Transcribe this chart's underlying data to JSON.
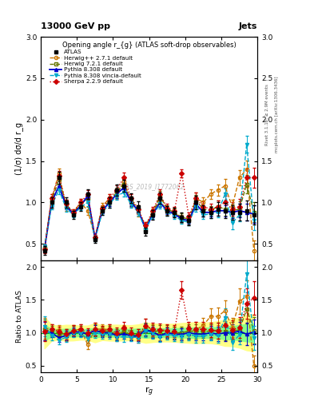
{
  "title_top": "13000 GeV pp",
  "title_right": "Jets",
  "plot_title": "Opening angle r_{g} (ATLAS soft-drop observables)",
  "xlabel": "r$_g$",
  "ylabel_main": "(1/σ) dσ/d r_g",
  "ylabel_ratio": "Ratio to ATLAS",
  "watermark": "ATLAS_2019_I1772062",
  "rivet_text": "Rivet 3.1.10; ≥ 2.9M events",
  "mcplots_text": "mcplots.cern.ch [arXiv:1306.3436]",
  "x_values": [
    0.5,
    1.5,
    2.5,
    3.5,
    4.5,
    5.5,
    6.5,
    7.5,
    8.5,
    9.5,
    10.5,
    11.5,
    12.5,
    13.5,
    14.5,
    15.5,
    16.5,
    17.5,
    18.5,
    19.5,
    20.5,
    21.5,
    22.5,
    23.5,
    24.5,
    25.5,
    26.5,
    27.5,
    28.5,
    29.5
  ],
  "atlas_y": [
    0.42,
    1.0,
    1.3,
    1.0,
    0.85,
    0.95,
    1.1,
    0.55,
    0.9,
    1.0,
    1.15,
    1.2,
    1.05,
    0.95,
    0.65,
    0.85,
    1.05,
    0.9,
    0.88,
    0.82,
    0.78,
    1.0,
    0.9,
    0.88,
    0.92,
    0.9,
    0.88,
    0.88,
    0.9,
    0.85
  ],
  "atlas_yerr": [
    0.05,
    0.06,
    0.07,
    0.06,
    0.05,
    0.05,
    0.06,
    0.04,
    0.05,
    0.06,
    0.07,
    0.07,
    0.06,
    0.06,
    0.05,
    0.06,
    0.07,
    0.06,
    0.06,
    0.06,
    0.06,
    0.08,
    0.07,
    0.07,
    0.08,
    0.09,
    0.09,
    0.1,
    0.12,
    0.12
  ],
  "herwig271_y": [
    0.45,
    1.05,
    1.35,
    0.95,
    0.88,
    1.0,
    0.9,
    0.58,
    0.95,
    1.05,
    1.1,
    1.25,
    1.0,
    0.88,
    0.72,
    0.88,
    1.02,
    0.9,
    0.88,
    0.8,
    0.78,
    1.05,
    1.0,
    1.1,
    1.15,
    1.2,
    0.95,
    1.3,
    1.4,
    0.42
  ],
  "herwig271_yerr": [
    0.04,
    0.05,
    0.06,
    0.05,
    0.04,
    0.04,
    0.05,
    0.03,
    0.04,
    0.05,
    0.06,
    0.06,
    0.05,
    0.05,
    0.04,
    0.05,
    0.06,
    0.05,
    0.05,
    0.05,
    0.05,
    0.07,
    0.06,
    0.06,
    0.07,
    0.08,
    0.08,
    0.09,
    0.11,
    0.12
  ],
  "herwig721_y": [
    0.44,
    1.02,
    1.28,
    0.98,
    0.87,
    0.98,
    1.05,
    0.57,
    0.92,
    1.02,
    1.12,
    1.22,
    1.02,
    0.92,
    0.68,
    0.87,
    1.08,
    0.92,
    0.88,
    0.82,
    0.8,
    1.02,
    0.92,
    0.9,
    0.95,
    0.92,
    0.9,
    0.92,
    1.22,
    0.88
  ],
  "herwig721_yerr": [
    0.04,
    0.05,
    0.06,
    0.05,
    0.04,
    0.04,
    0.05,
    0.03,
    0.04,
    0.05,
    0.06,
    0.06,
    0.05,
    0.05,
    0.04,
    0.05,
    0.06,
    0.05,
    0.05,
    0.05,
    0.05,
    0.07,
    0.06,
    0.06,
    0.07,
    0.08,
    0.08,
    0.09,
    0.11,
    0.12
  ],
  "pythia_y": [
    0.43,
    1.0,
    1.2,
    0.96,
    0.86,
    0.96,
    1.08,
    0.57,
    0.9,
    1.0,
    1.1,
    1.18,
    1.0,
    0.9,
    0.68,
    0.86,
    1.0,
    0.9,
    0.86,
    0.8,
    0.78,
    0.98,
    0.88,
    0.88,
    0.9,
    0.9,
    0.88,
    0.9,
    0.88,
    0.86
  ],
  "pythia_yerr": [
    0.03,
    0.04,
    0.05,
    0.04,
    0.03,
    0.03,
    0.04,
    0.02,
    0.03,
    0.04,
    0.05,
    0.05,
    0.04,
    0.04,
    0.03,
    0.04,
    0.05,
    0.04,
    0.04,
    0.04,
    0.04,
    0.06,
    0.05,
    0.05,
    0.06,
    0.07,
    0.07,
    0.08,
    0.1,
    0.11
  ],
  "vincia_y": [
    0.46,
    0.96,
    1.15,
    0.93,
    0.85,
    0.94,
    1.0,
    0.55,
    0.88,
    0.98,
    1.08,
    1.12,
    0.98,
    0.88,
    0.67,
    0.84,
    0.98,
    0.88,
    0.84,
    0.78,
    0.76,
    0.95,
    0.85,
    0.86,
    0.88,
    1.1,
    0.75,
    0.85,
    1.7,
    0.78
  ],
  "vincia_yerr": [
    0.03,
    0.04,
    0.05,
    0.04,
    0.03,
    0.03,
    0.04,
    0.02,
    0.03,
    0.04,
    0.05,
    0.05,
    0.04,
    0.04,
    0.03,
    0.04,
    0.05,
    0.04,
    0.04,
    0.04,
    0.04,
    0.06,
    0.05,
    0.05,
    0.06,
    0.07,
    0.07,
    0.08,
    0.1,
    0.11
  ],
  "sherpa_y": [
    0.43,
    1.05,
    1.32,
    0.98,
    0.88,
    1.0,
    1.1,
    0.58,
    0.93,
    1.05,
    1.15,
    1.3,
    1.05,
    0.92,
    0.72,
    0.9,
    1.1,
    0.93,
    0.9,
    1.35,
    0.83,
    1.05,
    0.95,
    0.92,
    0.95,
    1.0,
    0.92,
    0.95,
    1.3,
    1.3
  ],
  "sherpa_yerr": [
    0.04,
    0.05,
    0.06,
    0.05,
    0.04,
    0.04,
    0.05,
    0.03,
    0.04,
    0.05,
    0.06,
    0.06,
    0.05,
    0.05,
    0.04,
    0.05,
    0.06,
    0.05,
    0.05,
    0.05,
    0.05,
    0.07,
    0.06,
    0.06,
    0.07,
    0.08,
    0.08,
    0.09,
    0.11,
    0.12
  ],
  "color_atlas": "#000000",
  "color_herwig271": "#cc7700",
  "color_herwig721": "#667700",
  "color_pythia": "#0000cc",
  "color_vincia": "#00aacc",
  "color_sherpa": "#cc0000",
  "ylim_main": [
    0.3,
    3.0
  ],
  "ylim_ratio": [
    0.4,
    2.1
  ],
  "xlim": [
    0,
    30
  ],
  "yticks_main": [
    0.5,
    1.0,
    1.5,
    2.0,
    2.5,
    3.0
  ],
  "yticks_ratio": [
    0.5,
    1.0,
    1.5,
    2.0
  ],
  "xticks": [
    0,
    5,
    10,
    15,
    20,
    25,
    30
  ],
  "band_color_yellow": "#ffff88",
  "band_color_green": "#88ff88"
}
